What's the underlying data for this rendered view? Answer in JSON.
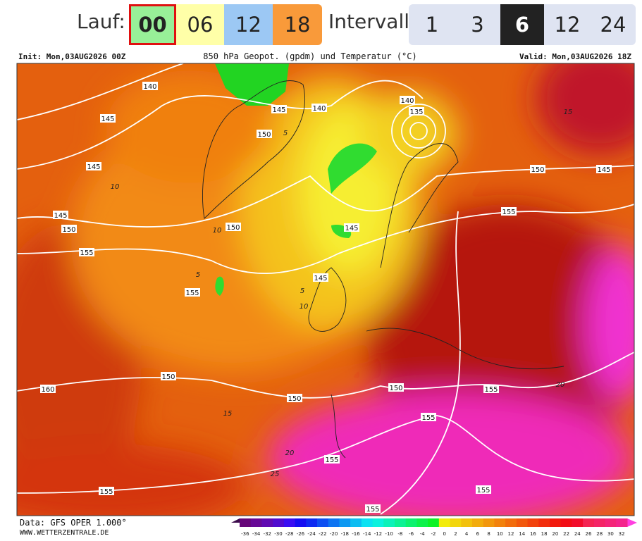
{
  "toolbar": {
    "run_label": "Lauf:",
    "runs": [
      "00",
      "06",
      "12",
      "18"
    ],
    "selected_run": "00",
    "interval_label": "Intervall",
    "intervals": [
      "1",
      "3",
      "6",
      "12",
      "24"
    ],
    "selected_interval": "6"
  },
  "map": {
    "init": "Init: Mon,03AUG2026 00Z",
    "title": "850 hPa Geopot. (gpdm) und Temperatur (°C)",
    "valid": "Valid: Mon,03AUG2026 18Z",
    "geopotential_labels": [
      "140",
      "145",
      "145",
      "145",
      "150",
      "155",
      "150",
      "145",
      "140",
      "140",
      "135",
      "150",
      "145",
      "150",
      "145",
      "155",
      "145",
      "155",
      "160",
      "150",
      "150",
      "150",
      "155",
      "155",
      "155",
      "155",
      "155",
      "155"
    ],
    "temperature_labels": [
      "10",
      "10",
      "10",
      "15",
      "20",
      "25",
      "20",
      "15",
      "5",
      "5",
      "5"
    ]
  },
  "footer": {
    "source": "Data: GFS OPER 1.000°",
    "site": "WWW.WETTERZENTRALE.DE",
    "scale_labels": [
      -36,
      -34,
      -32,
      -30,
      -28,
      -26,
      -24,
      -22,
      -20,
      -18,
      -16,
      -14,
      -12,
      -10,
      -8,
      -6,
      -4,
      -2,
      0,
      2,
      4,
      6,
      8,
      10,
      12,
      14,
      16,
      18,
      20,
      22,
      24,
      26,
      28,
      30,
      32
    ]
  }
}
